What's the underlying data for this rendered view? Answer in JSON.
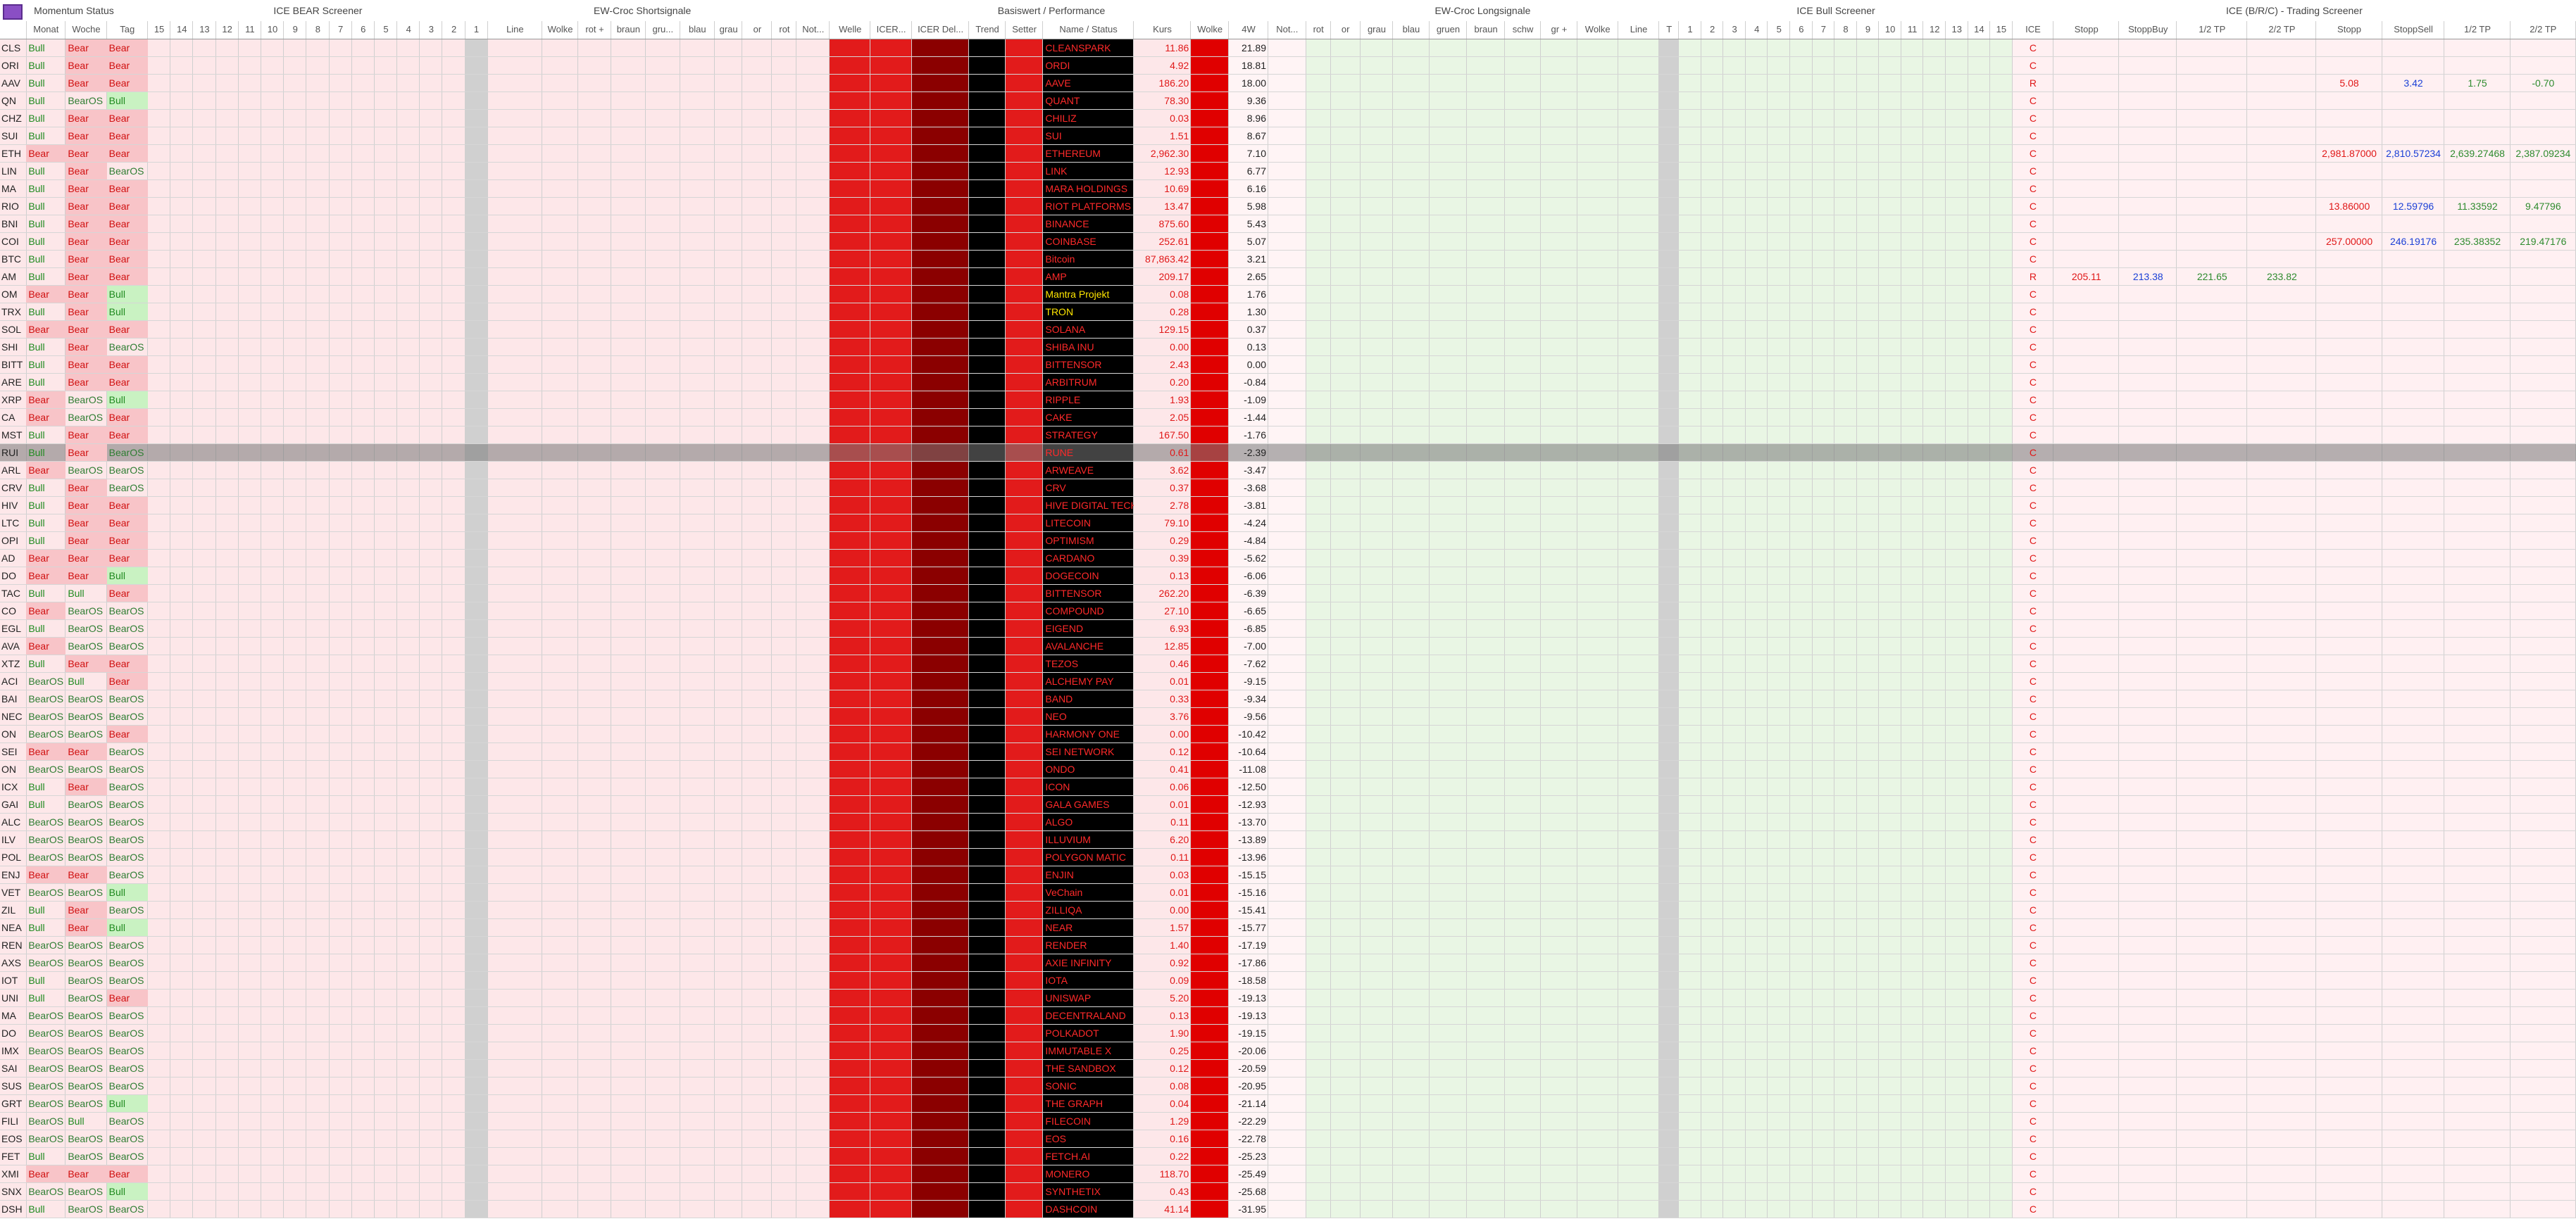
{
  "header": {
    "groups": [
      "Momentum Status",
      "ICE BEAR Screener",
      "EW-Croc Shortsignale",
      "Basiswert / Performance",
      "EW-Croc Longsignale",
      "ICE Bull Screener",
      "ICE (B/R/C) - Trading Screener"
    ],
    "columns": [
      "Monat",
      "Woche",
      "Tag",
      "15",
      "14",
      "13",
      "12",
      "11",
      "10",
      "9",
      "8",
      "7",
      "6",
      "5",
      "4",
      "3",
      "2",
      "1",
      "Line",
      "Wolke",
      "rot +",
      "braun",
      "gru...",
      "blau",
      "grau",
      "or",
      "rot",
      "Not...",
      "Welle",
      "ICER...",
      "ICER Del...",
      "Trend",
      "Setter",
      "Name / Status",
      "Kurs",
      "Wolke",
      "4W",
      "Not...",
      "rot",
      "or",
      "grau",
      "blau",
      "gruen",
      "braun",
      "schw",
      "gr +",
      "Wolke",
      "Line",
      "T",
      "1",
      "2",
      "3",
      "4",
      "5",
      "6",
      "7",
      "8",
      "9",
      "10",
      "11",
      "12",
      "13",
      "14",
      "15",
      "ICE",
      "Stopp",
      "StoppBuy",
      "1/2 TP",
      "2/2 TP",
      "Stopp",
      "StoppSell",
      "1/2 TP",
      "2/2 TP"
    ]
  },
  "rows": [
    {
      "sym": "CLS",
      "m": "Bull",
      "w": "Bear",
      "t": "Bear",
      "name": "CLEANSPARK",
      "kurs": "11.86",
      "w4": "21.89",
      "ice": "C"
    },
    {
      "sym": "ORI",
      "m": "Bull",
      "w": "Bear",
      "t": "Bear",
      "name": "ORDI",
      "kurs": "4.92",
      "w4": "18.81",
      "ice": "C"
    },
    {
      "sym": "AAV",
      "m": "Bull",
      "w": "Bear",
      "t": "Bear",
      "name": "AAVE",
      "kurs": "186.20",
      "w4": "18.00",
      "ice": "R",
      "sell": [
        "5.08",
        "3.42",
        "1.75",
        "-0.70"
      ]
    },
    {
      "sym": "QN",
      "m": "Bull",
      "w": "BearOS",
      "t": "Bull",
      "name": "QUANT",
      "kurs": "78.30",
      "w4": "9.36",
      "ice": "C"
    },
    {
      "sym": "CHZ",
      "m": "Bull",
      "w": "Bear",
      "t": "Bear",
      "name": "CHILIZ",
      "kurs": "0.03",
      "w4": "8.96",
      "ice": "C"
    },
    {
      "sym": "SUI",
      "m": "Bull",
      "w": "Bear",
      "t": "Bear",
      "name": "SUI",
      "kurs": "1.51",
      "w4": "8.67",
      "ice": "C"
    },
    {
      "sym": "ETH",
      "m": "Bear",
      "w": "Bear",
      "t": "Bear",
      "name": "ETHEREUM",
      "kurs": "2,962.30",
      "w4": "7.10",
      "ice": "C",
      "sell": [
        "2,981.87000",
        "2,810.57234",
        "2,639.27468",
        "2,387.09234"
      ]
    },
    {
      "sym": "LIN",
      "m": "Bull",
      "w": "Bear",
      "t": "BearOS",
      "name": "LINK",
      "kurs": "12.93",
      "w4": "6.77",
      "ice": "C"
    },
    {
      "sym": "MA",
      "m": "Bull",
      "w": "Bear",
      "t": "Bear",
      "name": "MARA HOLDINGS",
      "kurs": "10.69",
      "w4": "6.16",
      "ice": "C"
    },
    {
      "sym": "RIO",
      "m": "Bull",
      "w": "Bear",
      "t": "Bear",
      "name": "RIOT PLATFORMS",
      "kurs": "13.47",
      "w4": "5.98",
      "ice": "C",
      "sell": [
        "13.86000",
        "12.59796",
        "11.33592",
        "9.47796"
      ]
    },
    {
      "sym": "BNI",
      "m": "Bull",
      "w": "Bear",
      "t": "Bear",
      "name": "BINANCE",
      "kurs": "875.60",
      "w4": "5.43",
      "ice": "C"
    },
    {
      "sym": "COI",
      "m": "Bull",
      "w": "Bear",
      "t": "Bear",
      "name": "COINBASE",
      "kurs": "252.61",
      "w4": "5.07",
      "ice": "C",
      "sell": [
        "257.00000",
        "246.19176",
        "235.38352",
        "219.47176"
      ]
    },
    {
      "sym": "BTC",
      "m": "Bull",
      "w": "Bear",
      "t": "Bear",
      "name": "Bitcoin",
      "kurs": "87,863.42",
      "w4": "3.21",
      "ice": "C"
    },
    {
      "sym": "AM",
      "m": "Bull",
      "w": "Bear",
      "t": "Bear",
      "name": "AMP",
      "kurs": "209.17",
      "w4": "2.65",
      "ice": "R",
      "buy": [
        "205.11",
        "213.38",
        "221.65",
        "233.82"
      ]
    },
    {
      "sym": "OM",
      "m": "Bear",
      "w": "Bear",
      "t": "Bull",
      "name": "Mantra Projekt",
      "kurs": "0.08",
      "w4": "1.76",
      "ice": "C"
    },
    {
      "sym": "TRX",
      "m": "Bull",
      "w": "Bear",
      "t": "Bull",
      "name": "TRON",
      "kurs": "0.28",
      "w4": "1.30",
      "ice": "C"
    },
    {
      "sym": "SOL",
      "m": "Bear",
      "w": "Bear",
      "t": "Bear",
      "name": "SOLANA",
      "kurs": "129.15",
      "w4": "0.37",
      "ice": "C"
    },
    {
      "sym": "SHI",
      "m": "Bull",
      "w": "Bear",
      "t": "BearOS",
      "name": "SHIBA INU",
      "kurs": "0.00",
      "w4": "0.13",
      "ice": "C"
    },
    {
      "sym": "BITT",
      "m": "Bull",
      "w": "Bear",
      "t": "Bear",
      "name": "BITTENSOR",
      "kurs": "2.43",
      "w4": "0.00",
      "ice": "C"
    },
    {
      "sym": "ARE",
      "m": "Bull",
      "w": "Bear",
      "t": "Bear",
      "name": "ARBITRUM",
      "kurs": "0.20",
      "w4": "-0.84",
      "ice": "C"
    },
    {
      "sym": "XRP",
      "m": "Bear",
      "w": "BearOS",
      "t": "Bull",
      "name": "RIPPLE",
      "kurs": "1.93",
      "w4": "-1.09",
      "ice": "C"
    },
    {
      "sym": "CA",
      "m": "Bear",
      "w": "BearOS",
      "t": "Bear",
      "name": "CAKE",
      "kurs": "2.05",
      "w4": "-1.44",
      "ice": "C"
    },
    {
      "sym": "MST",
      "m": "Bull",
      "w": "Bear",
      "t": "Bear",
      "name": "STRATEGY",
      "kurs": "167.50",
      "w4": "-1.76",
      "ice": "C"
    },
    {
      "sym": "RUI",
      "m": "Bull",
      "w": "Bear",
      "t": "BearOS",
      "name": "RUNE",
      "kurs": "0.61",
      "w4": "-2.39",
      "ice": "C"
    },
    {
      "sym": "ARL",
      "m": "Bear",
      "w": "BearOS",
      "t": "BearOS",
      "name": "ARWEAVE",
      "kurs": "3.62",
      "w4": "-3.47",
      "ice": "C"
    },
    {
      "sym": "CRV",
      "m": "Bull",
      "w": "Bear",
      "t": "BearOS",
      "name": "CRV",
      "kurs": "0.37",
      "w4": "-3.68",
      "ice": "C"
    },
    {
      "sym": "HIV",
      "m": "Bull",
      "w": "Bear",
      "t": "Bear",
      "name": "HIVE DIGITAL TECH",
      "kurs": "2.78",
      "w4": "-3.81",
      "ice": "C"
    },
    {
      "sym": "LTC",
      "m": "Bull",
      "w": "Bear",
      "t": "Bear",
      "name": "LITECOIN",
      "kurs": "79.10",
      "w4": "-4.24",
      "ice": "C"
    },
    {
      "sym": "OPI",
      "m": "Bull",
      "w": "Bear",
      "t": "Bear",
      "name": "OPTIMISM",
      "kurs": "0.29",
      "w4": "-4.84",
      "ice": "C"
    },
    {
      "sym": "AD",
      "m": "Bear",
      "w": "Bear",
      "t": "Bear",
      "name": "CARDANO",
      "kurs": "0.39",
      "w4": "-5.62",
      "ice": "C"
    },
    {
      "sym": "DO",
      "m": "Bear",
      "w": "Bear",
      "t": "Bull",
      "name": "DOGECOIN",
      "kurs": "0.13",
      "w4": "-6.06",
      "ice": "C"
    },
    {
      "sym": "TAC",
      "m": "Bull",
      "w": "Bull",
      "t": "Bear",
      "name": "BITTENSOR",
      "kurs": "262.20",
      "w4": "-6.39",
      "ice": "C"
    },
    {
      "sym": "CO",
      "m": "Bear",
      "w": "BearOS",
      "t": "BearOS",
      "name": "COMPOUND",
      "kurs": "27.10",
      "w4": "-6.65",
      "ice": "C"
    },
    {
      "sym": "EGL",
      "m": "Bull",
      "w": "BearOS",
      "t": "BearOS",
      "name": "EIGEND",
      "kurs": "6.93",
      "w4": "-6.85",
      "ice": "C"
    },
    {
      "sym": "AVA",
      "m": "Bear",
      "w": "BearOS",
      "t": "BearOS",
      "name": "AVALANCHE",
      "kurs": "12.85",
      "w4": "-7.00",
      "ice": "C"
    },
    {
      "sym": "XTZ",
      "m": "Bull",
      "w": "Bear",
      "t": "Bear",
      "name": "TEZOS",
      "kurs": "0.46",
      "w4": "-7.62",
      "ice": "C"
    },
    {
      "sym": "ACI",
      "m": "BearOS",
      "w": "Bull",
      "t": "Bear",
      "name": "ALCHEMY PAY",
      "kurs": "0.01",
      "w4": "-9.15",
      "ice": "C"
    },
    {
      "sym": "BAI",
      "m": "BearOS",
      "w": "BearOS",
      "t": "BearOS",
      "name": "BAND",
      "kurs": "0.33",
      "w4": "-9.34",
      "ice": "C"
    },
    {
      "sym": "NEC",
      "m": "BearOS",
      "w": "BearOS",
      "t": "BearOS",
      "name": "NEO",
      "kurs": "3.76",
      "w4": "-9.56",
      "ice": "C"
    },
    {
      "sym": "ON",
      "m": "BearOS",
      "w": "BearOS",
      "t": "Bear",
      "name": "HARMONY ONE",
      "kurs": "0.00",
      "w4": "-10.42",
      "ice": "C"
    },
    {
      "sym": "SEI",
      "m": "Bear",
      "w": "Bear",
      "t": "BearOS",
      "name": "SEI NETWORK",
      "kurs": "0.12",
      "w4": "-10.64",
      "ice": "C"
    },
    {
      "sym": "ON",
      "m": "BearOS",
      "w": "BearOS",
      "t": "BearOS",
      "name": "ONDO",
      "kurs": "0.41",
      "w4": "-11.08",
      "ice": "C"
    },
    {
      "sym": "ICX",
      "m": "Bull",
      "w": "Bear",
      "t": "BearOS",
      "name": "ICON",
      "kurs": "0.06",
      "w4": "-12.50",
      "ice": "C"
    },
    {
      "sym": "GAI",
      "m": "Bull",
      "w": "BearOS",
      "t": "BearOS",
      "name": "GALA GAMES",
      "kurs": "0.01",
      "w4": "-12.93",
      "ice": "C"
    },
    {
      "sym": "ALC",
      "m": "BearOS",
      "w": "BearOS",
      "t": "BearOS",
      "name": "ALGO",
      "kurs": "0.11",
      "w4": "-13.70",
      "ice": "C"
    },
    {
      "sym": "ILV",
      "m": "BearOS",
      "w": "BearOS",
      "t": "BearOS",
      "name": "ILLUVIUM",
      "kurs": "6.20",
      "w4": "-13.89",
      "ice": "C"
    },
    {
      "sym": "POL",
      "m": "BearOS",
      "w": "BearOS",
      "t": "BearOS",
      "name": "POLYGON MATIC",
      "kurs": "0.11",
      "w4": "-13.96",
      "ice": "C"
    },
    {
      "sym": "ENJ",
      "m": "Bear",
      "w": "Bear",
      "t": "BearOS",
      "name": "ENJIN",
      "kurs": "0.03",
      "w4": "-15.15",
      "ice": "C"
    },
    {
      "sym": "VET",
      "m": "BearOS",
      "w": "BearOS",
      "t": "Bull",
      "name": "VeChain",
      "kurs": "0.01",
      "w4": "-15.16",
      "ice": "C"
    },
    {
      "sym": "ZIL",
      "m": "Bull",
      "w": "Bear",
      "t": "BearOS",
      "name": "ZILLIQA",
      "kurs": "0.00",
      "w4": "-15.41",
      "ice": "C"
    },
    {
      "sym": "NEA",
      "m": "Bull",
      "w": "Bear",
      "t": "Bull",
      "name": "NEAR",
      "kurs": "1.57",
      "w4": "-15.77",
      "ice": "C"
    },
    {
      "sym": "REN",
      "m": "BearOS",
      "w": "BearOS",
      "t": "BearOS",
      "name": "RENDER",
      "kurs": "1.40",
      "w4": "-17.19",
      "ice": "C"
    },
    {
      "sym": "AXS",
      "m": "BearOS",
      "w": "BearOS",
      "t": "BearOS",
      "name": "AXIE INFINITY",
      "kurs": "0.92",
      "w4": "-17.86",
      "ice": "C"
    },
    {
      "sym": "IOT",
      "m": "Bull",
      "w": "BearOS",
      "t": "BearOS",
      "name": "IOTA",
      "kurs": "0.09",
      "w4": "-18.58",
      "ice": "C"
    },
    {
      "sym": "UNI",
      "m": "Bull",
      "w": "BearOS",
      "t": "Bear",
      "name": "UNISWAP",
      "kurs": "5.20",
      "w4": "-19.13",
      "ice": "C"
    },
    {
      "sym": "MA",
      "m": "BearOS",
      "w": "BearOS",
      "t": "BearOS",
      "name": "DECENTRALAND",
      "kurs": "0.13",
      "w4": "-19.13",
      "ice": "C"
    },
    {
      "sym": "DO",
      "m": "BearOS",
      "w": "BearOS",
      "t": "BearOS",
      "name": "POLKADOT",
      "kurs": "1.90",
      "w4": "-19.15",
      "ice": "C"
    },
    {
      "sym": "IMX",
      "m": "BearOS",
      "w": "BearOS",
      "t": "BearOS",
      "name": "IMMUTABLE X",
      "kurs": "0.25",
      "w4": "-20.06",
      "ice": "C"
    },
    {
      "sym": "SAI",
      "m": "BearOS",
      "w": "BearOS",
      "t": "BearOS",
      "name": "THE SANDBOX",
      "kurs": "0.12",
      "w4": "-20.59",
      "ice": "C"
    },
    {
      "sym": "SUS",
      "m": "BearOS",
      "w": "BearOS",
      "t": "BearOS",
      "name": "SONIC",
      "kurs": "0.08",
      "w4": "-20.95",
      "ice": "C"
    },
    {
      "sym": "GRT",
      "m": "BearOS",
      "w": "BearOS",
      "t": "Bull",
      "name": "THE GRAPH",
      "kurs": "0.04",
      "w4": "-21.14",
      "ice": "C"
    },
    {
      "sym": "FILI",
      "m": "BearOS",
      "w": "Bull",
      "t": "BearOS",
      "name": "FILECOIN",
      "kurs": "1.29",
      "w4": "-22.29",
      "ice": "C"
    },
    {
      "sym": "EOS",
      "m": "BearOS",
      "w": "BearOS",
      "t": "BearOS",
      "name": "EOS",
      "kurs": "0.16",
      "w4": "-22.78",
      "ice": "C"
    },
    {
      "sym": "FET",
      "m": "Bull",
      "w": "BearOS",
      "t": "BearOS",
      "name": "FETCH.AI",
      "kurs": "0.22",
      "w4": "-25.23",
      "ice": "C"
    },
    {
      "sym": "XMI",
      "m": "Bear",
      "w": "Bear",
      "t": "Bear",
      "name": "MONERO",
      "kurs": "118.70",
      "w4": "-25.49",
      "ice": "C"
    },
    {
      "sym": "SNX",
      "m": "BearOS",
      "w": "BearOS",
      "t": "Bull",
      "name": "SYNTHETIX",
      "kurs": "0.43",
      "w4": "-25.68",
      "ice": "C"
    },
    {
      "sym": "DSH",
      "m": "Bull",
      "w": "BearOS",
      "t": "BearOS",
      "name": "DASHCOIN",
      "kurs": "41.14",
      "w4": "-31.95",
      "ice": "C"
    }
  ]
}
